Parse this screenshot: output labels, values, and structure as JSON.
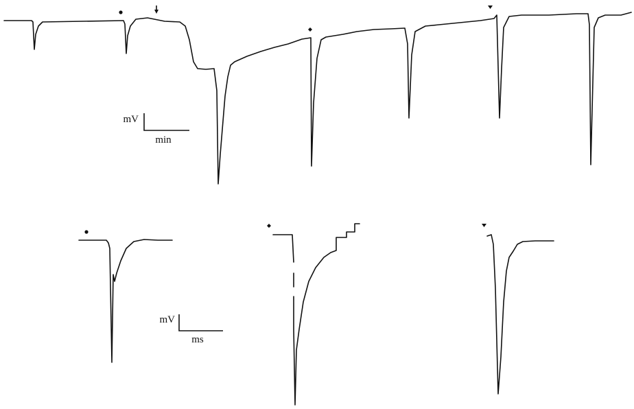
{
  "top_scale": {
    "y_unit": "mV",
    "x_unit": "min"
  },
  "bottom_scale": {
    "y_unit": "mV",
    "x_unit": "ms"
  },
  "markers": [
    {
      "shape": "dot"
    },
    {
      "shape": "diamond"
    },
    {
      "shape": "triangle-down"
    }
  ],
  "stimulus_arrow": {
    "shape": "down-arrow"
  }
}
